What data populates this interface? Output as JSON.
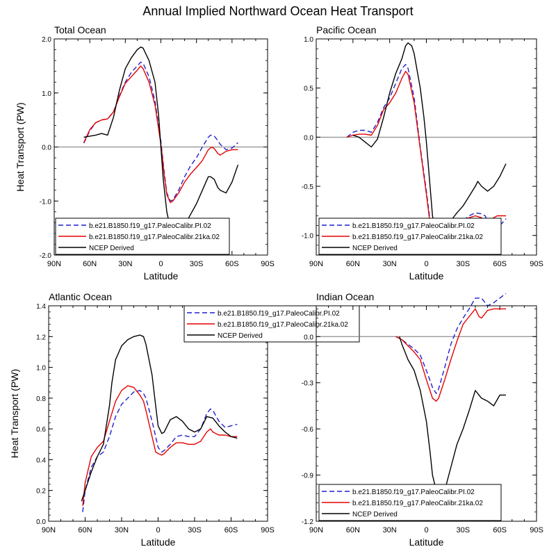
{
  "title": "Annual Implied Northward Ocean Heat Transport",
  "colors": {
    "pi": "#1f1fcc",
    "k21": "#e60000",
    "ncep": "#000000"
  },
  "series_names": [
    "b.e21.B1850.f19_g17.PaleoCalibr.PI.02",
    "b.e21.B1850.f19_g17.PaleoCalibr.21ka.02",
    "NCEP Derived"
  ],
  "chart_data": [
    {
      "type": "line",
      "title": "Total Ocean",
      "xlabel": "Latitude",
      "ylabel": "Heat Transport (PW)",
      "xlim": [
        90,
        -90
      ],
      "ylim": [
        -2,
        2
      ],
      "xticks": [
        "90N",
        "60N",
        "30N",
        "0",
        "30S",
        "60S",
        "90S"
      ],
      "yticks": [
        "-2.0",
        "-1.0",
        "0.0",
        "1.0",
        "2.0"
      ],
      "series": [
        {
          "name": "b.e21.B1850.f19_g17.PaleoCalibr.PI.02",
          "x": [
            65,
            60,
            55,
            50,
            45,
            40,
            35,
            30,
            25,
            20,
            17,
            15,
            10,
            5,
            0,
            -3,
            -5,
            -8,
            -10,
            -15,
            -20,
            -25,
            -30,
            -35,
            -40,
            -42,
            -45,
            -48,
            -50,
            -55,
            -60,
            -65
          ],
          "y": [
            0.07,
            0.3,
            0.45,
            0.5,
            0.52,
            0.65,
            0.95,
            1.2,
            1.38,
            1.5,
            1.57,
            1.55,
            1.3,
            0.85,
            0.1,
            -0.5,
            -0.85,
            -1.0,
            -0.98,
            -0.8,
            -0.55,
            -0.35,
            -0.2,
            0.0,
            0.18,
            0.22,
            0.2,
            0.12,
            0.05,
            -0.05,
            -0.02,
            0.08
          ]
        },
        {
          "name": "b.e21.B1850.f19_g17.PaleoCalibr.21ka.02",
          "x": [
            65,
            60,
            55,
            50,
            45,
            40,
            35,
            30,
            25,
            20,
            17,
            15,
            10,
            5,
            0,
            -3,
            -5,
            -8,
            -10,
            -15,
            -20,
            -25,
            -30,
            -35,
            -40,
            -43,
            -45,
            -48,
            -50,
            -55,
            -60,
            -65
          ],
          "y": [
            0.08,
            0.32,
            0.45,
            0.5,
            0.52,
            0.65,
            0.93,
            1.18,
            1.3,
            1.42,
            1.5,
            1.45,
            1.2,
            0.78,
            0.05,
            -0.55,
            -0.88,
            -1.03,
            -1.0,
            -0.85,
            -0.65,
            -0.5,
            -0.38,
            -0.25,
            -0.05,
            0.0,
            -0.03,
            -0.12,
            -0.15,
            -0.08,
            -0.05,
            -0.05
          ]
        },
        {
          "name": "NCEP Derived",
          "x": [
            65,
            60,
            55,
            50,
            45,
            40,
            35,
            30,
            25,
            20,
            17,
            15,
            10,
            5,
            2,
            0,
            -2,
            -5,
            -8,
            -10,
            -15,
            -20,
            -25,
            -30,
            -35,
            -40,
            -42,
            -45,
            -48,
            -50,
            -55,
            -60,
            -65
          ],
          "y": [
            0.18,
            0.2,
            0.22,
            0.25,
            0.22,
            0.55,
            1.05,
            1.45,
            1.65,
            1.8,
            1.85,
            1.83,
            1.6,
            1.2,
            0.6,
            0.0,
            -0.6,
            -1.2,
            -1.5,
            -1.65,
            -1.6,
            -1.45,
            -1.25,
            -1.05,
            -0.8,
            -0.55,
            -0.55,
            -0.6,
            -0.75,
            -0.8,
            -0.85,
            -0.65,
            -0.33
          ]
        }
      ]
    },
    {
      "type": "line",
      "title": "Pacific Ocean",
      "xlabel": "Latitude",
      "ylabel": "",
      "xlim": [
        90,
        -90
      ],
      "ylim": [
        -1.2,
        1.0
      ],
      "xticks": [
        "90N",
        "60N",
        "30N",
        "0",
        "30S",
        "60S",
        "90S"
      ],
      "yticks": [
        "-1.0",
        "-0.5",
        "0.0",
        "0.5",
        "1.0"
      ],
      "series": [
        {
          "name": "b.e21.B1850.f19_g17.PaleoCalibr.PI.02",
          "x": [
            65,
            60,
            55,
            50,
            45,
            40,
            35,
            30,
            25,
            20,
            17,
            15,
            10,
            5,
            0,
            -3,
            -5,
            -8,
            -10,
            -15,
            -20,
            -25,
            -30,
            -35,
            -40,
            -45,
            -48,
            -50,
            -55,
            -58,
            -60,
            -65
          ],
          "y": [
            0.0,
            0.05,
            0.07,
            0.07,
            0.05,
            0.15,
            0.3,
            0.4,
            0.55,
            0.7,
            0.74,
            0.7,
            0.4,
            -0.1,
            -0.55,
            -0.85,
            -1.0,
            -1.07,
            -1.08,
            -1.0,
            -0.95,
            -0.9,
            -0.85,
            -0.8,
            -0.77,
            -0.78,
            -0.8,
            -0.85,
            -0.88,
            -0.92,
            -0.9,
            -0.83
          ]
        },
        {
          "name": "b.e21.B1850.f19_g17.PaleoCalibr.21ka.02",
          "x": [
            65,
            60,
            55,
            50,
            45,
            40,
            35,
            30,
            25,
            20,
            17,
            15,
            10,
            5,
            0,
            -3,
            -5,
            -8,
            -10,
            -15,
            -20,
            -25,
            -30,
            -35,
            -40,
            -45,
            -48,
            -50,
            -55,
            -58,
            -60,
            -65
          ],
          "y": [
            0.0,
            0.02,
            0.03,
            0.03,
            0.02,
            0.12,
            0.28,
            0.35,
            0.45,
            0.6,
            0.67,
            0.64,
            0.35,
            -0.12,
            -0.58,
            -0.88,
            -1.02,
            -1.09,
            -1.1,
            -1.02,
            -0.95,
            -0.9,
            -0.85,
            -0.82,
            -0.8,
            -0.82,
            -0.85,
            -0.86,
            -0.82,
            -0.8,
            -0.8,
            -0.8
          ]
        },
        {
          "name": "NCEP Derived",
          "x": [
            60,
            55,
            50,
            45,
            40,
            35,
            30,
            25,
            20,
            17,
            15,
            12,
            10,
            5,
            2,
            0,
            -3,
            -5,
            -8,
            -10,
            -15,
            -20,
            -25,
            -30,
            -35,
            -40,
            -42,
            -45,
            -50,
            -55,
            -60,
            -65
          ],
          "y": [
            0.02,
            0.0,
            -0.05,
            -0.1,
            -0.02,
            0.2,
            0.45,
            0.65,
            0.8,
            0.93,
            0.96,
            0.93,
            0.85,
            0.5,
            0.2,
            -0.05,
            -0.5,
            -0.8,
            -1.0,
            -1.05,
            -0.95,
            -0.85,
            -0.77,
            -0.7,
            -0.6,
            -0.5,
            -0.45,
            -0.5,
            -0.55,
            -0.5,
            -0.4,
            -0.27
          ]
        }
      ]
    },
    {
      "type": "line",
      "title": "Atlantic Ocean",
      "xlabel": "Latitude",
      "ylabel": "Heat Transport (PW)",
      "xlim": [
        90,
        -90
      ],
      "ylim": [
        0,
        1.4
      ],
      "xticks": [
        "90N",
        "60N",
        "30N",
        "0",
        "30S",
        "60S",
        "90S"
      ],
      "yticks": [
        "0.0",
        "0.2",
        "0.4",
        "0.6",
        "0.8",
        "1.0",
        "1.2",
        "1.4"
      ],
      "series": [
        {
          "name": "b.e21.B1850.f19_g17.PaleoCalibr.PI.02",
          "x": [
            62,
            60,
            55,
            50,
            45,
            40,
            35,
            30,
            25,
            20,
            15,
            12,
            10,
            5,
            2,
            0,
            -3,
            -5,
            -10,
            -15,
            -20,
            -25,
            -30,
            -35,
            -40,
            -43,
            -45,
            -50,
            -55,
            -60,
            -65
          ],
          "y": [
            0.06,
            0.2,
            0.35,
            0.42,
            0.45,
            0.55,
            0.68,
            0.76,
            0.8,
            0.84,
            0.85,
            0.83,
            0.8,
            0.65,
            0.55,
            0.48,
            0.45,
            0.46,
            0.5,
            0.55,
            0.56,
            0.55,
            0.55,
            0.6,
            0.7,
            0.73,
            0.72,
            0.65,
            0.61,
            0.62,
            0.63
          ]
        },
        {
          "name": "b.e21.B1850.f19_g17.PaleoCalibr.21ka.02",
          "x": [
            62,
            60,
            55,
            50,
            45,
            40,
            35,
            30,
            25,
            20,
            15,
            12,
            10,
            5,
            2,
            0,
            -3,
            -5,
            -10,
            -15,
            -20,
            -25,
            -30,
            -35,
            -40,
            -43,
            -45,
            -50,
            -55,
            -60,
            -65
          ],
          "y": [
            0.1,
            0.25,
            0.42,
            0.48,
            0.52,
            0.65,
            0.78,
            0.85,
            0.88,
            0.87,
            0.82,
            0.78,
            0.72,
            0.55,
            0.45,
            0.44,
            0.43,
            0.44,
            0.48,
            0.51,
            0.51,
            0.5,
            0.5,
            0.52,
            0.58,
            0.6,
            0.58,
            0.56,
            0.56,
            0.55,
            0.55
          ]
        },
        {
          "name": "NCEP Derived",
          "x": [
            63,
            60,
            55,
            50,
            45,
            40,
            38,
            35,
            30,
            25,
            20,
            15,
            12,
            10,
            5,
            2,
            0,
            -3,
            -5,
            -10,
            -15,
            -20,
            -25,
            -30,
            -35,
            -40,
            -45,
            -50,
            -55,
            -60,
            -65
          ],
          "y": [
            0.13,
            0.2,
            0.32,
            0.42,
            0.5,
            0.75,
            0.9,
            1.05,
            1.14,
            1.18,
            1.2,
            1.21,
            1.2,
            1.15,
            0.95,
            0.75,
            0.62,
            0.57,
            0.58,
            0.66,
            0.68,
            0.65,
            0.6,
            0.58,
            0.6,
            0.68,
            0.67,
            0.62,
            0.58,
            0.55,
            0.54
          ]
        }
      ]
    },
    {
      "type": "line",
      "title": "Indian Ocean",
      "xlabel": "Latitude",
      "ylabel": "",
      "xlim": [
        90,
        -90
      ],
      "ylim": [
        -1.2,
        0.2
      ],
      "xticks": [
        "90N",
        "60N",
        "30N",
        "0",
        "30S",
        "60S",
        "90S"
      ],
      "yticks": [
        "-1.2",
        "-0.9",
        "-0.6",
        "-0.3",
        "0.0"
      ],
      "series": [
        {
          "name": "b.e21.B1850.f19_g17.PaleoCalibr.PI.02",
          "x": [
            25,
            20,
            15,
            10,
            5,
            0,
            -5,
            -8,
            -10,
            -15,
            -20,
            -25,
            -30,
            -35,
            -40,
            -45,
            -50,
            -55,
            -60,
            -65
          ],
          "y": [
            0.0,
            -0.02,
            -0.05,
            -0.08,
            -0.12,
            -0.22,
            -0.33,
            -0.37,
            -0.34,
            -0.2,
            -0.05,
            0.05,
            0.12,
            0.18,
            0.25,
            0.25,
            0.2,
            0.22,
            0.25,
            0.28
          ]
        },
        {
          "name": "b.e21.B1850.f19_g17.PaleoCalibr.21ka.02",
          "x": [
            25,
            20,
            15,
            10,
            5,
            0,
            -5,
            -8,
            -10,
            -15,
            -20,
            -25,
            -30,
            -35,
            -40,
            -43,
            -45,
            -48,
            -50,
            -55,
            -60,
            -65
          ],
          "y": [
            0.0,
            -0.02,
            -0.06,
            -0.1,
            -0.15,
            -0.28,
            -0.4,
            -0.42,
            -0.4,
            -0.28,
            -0.15,
            -0.03,
            0.08,
            0.13,
            0.18,
            0.13,
            0.12,
            0.15,
            0.17,
            0.18,
            0.18,
            0.18
          ]
        },
        {
          "name": "NCEP Derived",
          "x": [
            22,
            20,
            15,
            10,
            5,
            0,
            -3,
            -5,
            -8,
            -10,
            -15,
            -20,
            -25,
            -30,
            -35,
            -40,
            -45,
            -50,
            -55,
            -60,
            -65
          ],
          "y": [
            0.0,
            -0.05,
            -0.15,
            -0.22,
            -0.35,
            -0.55,
            -0.75,
            -0.9,
            -1.0,
            -1.05,
            -1.0,
            -0.85,
            -0.7,
            -0.6,
            -0.48,
            -0.35,
            -0.4,
            -0.42,
            -0.45,
            -0.38,
            -0.38
          ]
        }
      ]
    }
  ]
}
